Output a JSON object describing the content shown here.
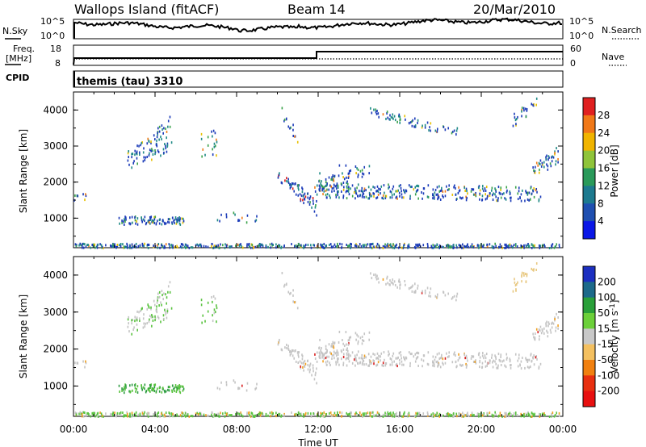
{
  "header": {
    "station": "Wallops Island (fitACF)",
    "beam": "Beam 14",
    "date": "20/Mar/2010"
  },
  "status_panels": {
    "nsky_label": "N.Sky",
    "nsky_top_tick": "10^5",
    "nsky_bottom_tick": "10^0",
    "nsearch_label": "N.Search",
    "nsearch_top_tick": "10^5",
    "nsearch_bottom_tick": "10^0",
    "freq_label": "Freq.",
    "freq_unit": "[MHz]",
    "freq_top_tick": "18",
    "freq_bottom_tick": "8",
    "nave_label": "Nave",
    "nave_top_tick": "60",
    "nave_bottom_tick": "0",
    "cpid_label": "CPID",
    "cpid_value": "themis (tau) 3310"
  },
  "chart_data": [
    {
      "type": "heatmap",
      "name": "power",
      "ylabel": "Slant Range [km]",
      "xlabel": "Time UT",
      "x_range_hours": [
        0,
        24
      ],
      "y_range_km": [
        180,
        4500
      ],
      "y_ticks": [
        "1000",
        "2000",
        "3000",
        "4000"
      ],
      "x_ticks": [
        "00:00",
        "04:00",
        "08:00",
        "12:00",
        "16:00",
        "20:00",
        "00:00"
      ],
      "colorbar_label": "Power [dB]",
      "colorbar_ticks": [
        "4",
        "8",
        "12",
        "16",
        "20",
        "24",
        "28"
      ],
      "colorbar_colors": [
        "#0a17e6",
        "#1f4fb0",
        "#1d7a8f",
        "#2a9a5a",
        "#8fc43a",
        "#f0b400",
        "#f07818",
        "#e02020"
      ],
      "colors": {
        "blue": "#1a3ab8",
        "teal": "#1f8a86",
        "green": "#3aa24a",
        "yellow": "#e8c000",
        "orange": "#ef7d1a",
        "red": "#d81e1e"
      }
    },
    {
      "type": "heatmap",
      "name": "velocity",
      "ylabel": "Slant Range [km]",
      "xlabel": "Time UT",
      "x_range_hours": [
        0,
        24
      ],
      "y_range_km": [
        180,
        4500
      ],
      "y_ticks": [
        "1000",
        "2000",
        "3000",
        "4000"
      ],
      "x_ticks": [
        "00:00",
        "04:00",
        "08:00",
        "12:00",
        "16:00",
        "20:00",
        "00:00"
      ],
      "colorbar_label": "Velocity [m s",
      "colorbar_label_sup": "-1",
      "colorbar_label_end": "]",
      "colorbar_ticks": [
        "200",
        "100",
        "50",
        "15",
        "-15",
        "-50",
        "-100",
        "-200"
      ],
      "colorbar_colors": [
        "#1c2fc0",
        "#1d6a8a",
        "#2aa03a",
        "#6cd03a",
        "#c8c8c8",
        "#f4c060",
        "#f08010",
        "#e83010",
        "#e81010"
      ],
      "colors": {
        "gray": "#c4c4c4",
        "green": "#58c23e",
        "dkgreen": "#2e9c42",
        "orange": "#f0a020",
        "red": "#d81e1e",
        "blue": "#2030b0",
        "yellow": "#e8c880"
      }
    }
  ],
  "x_axis_title": "Time UT"
}
